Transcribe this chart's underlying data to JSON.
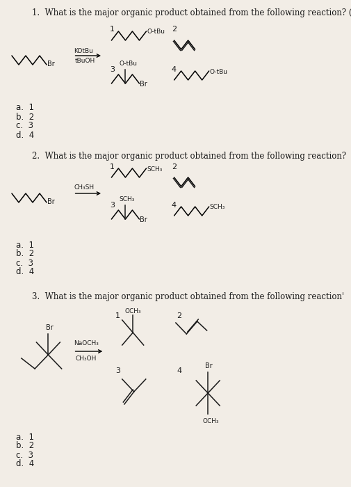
{
  "bg_color": "#f2ede6",
  "text_color": "#1a1a1a",
  "q1_title": "1.  What is the major organic product obtained from the following reaction? (",
  "q2_title": "2.  What is the major organic product obtained from the following reaction?",
  "q3_title": "3.  What is the major organic product obtained from the following reaction'",
  "answers": [
    "a.  1",
    "b.  2",
    "c.  3",
    "d.  4"
  ]
}
